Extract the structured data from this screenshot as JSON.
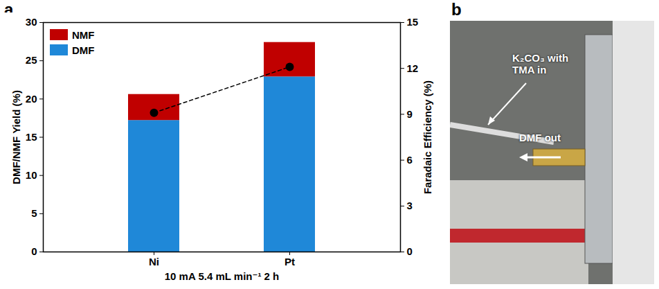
{
  "panel_labels": [
    "a",
    "b"
  ],
  "chart_data": {
    "type": "bar",
    "stacked": true,
    "categories": [
      "Ni",
      "Pt"
    ],
    "x_label": "10 mA 5.4 mL min⁻¹ 2 h",
    "y_label": "DMF/NMF Yield (%)",
    "y2_label": "Faradaic Efficiency (%)",
    "ylim": [
      0,
      30
    ],
    "yticks": [
      0,
      5,
      10,
      15,
      20,
      25,
      30
    ],
    "y2lim": [
      0,
      15
    ],
    "y2ticks": [
      0,
      3,
      6,
      9,
      12,
      15
    ],
    "legend": "upper left",
    "series": [
      {
        "name": "DMF",
        "type": "bar",
        "color": "#1f88d8",
        "values": [
          17.2,
          22.9
        ]
      },
      {
        "name": "NMF",
        "type": "bar",
        "color": "#c00000",
        "values": [
          3.4,
          4.5
        ]
      },
      {
        "type": "line",
        "axis": "y2",
        "color": "#000000",
        "marker": "circle",
        "line_style": "dashed",
        "values": [
          9.1,
          12.1
        ]
      }
    ]
  },
  "photo": {
    "annotations": [
      "K₂CO₃ with TMA in",
      "DMF out"
    ]
  }
}
